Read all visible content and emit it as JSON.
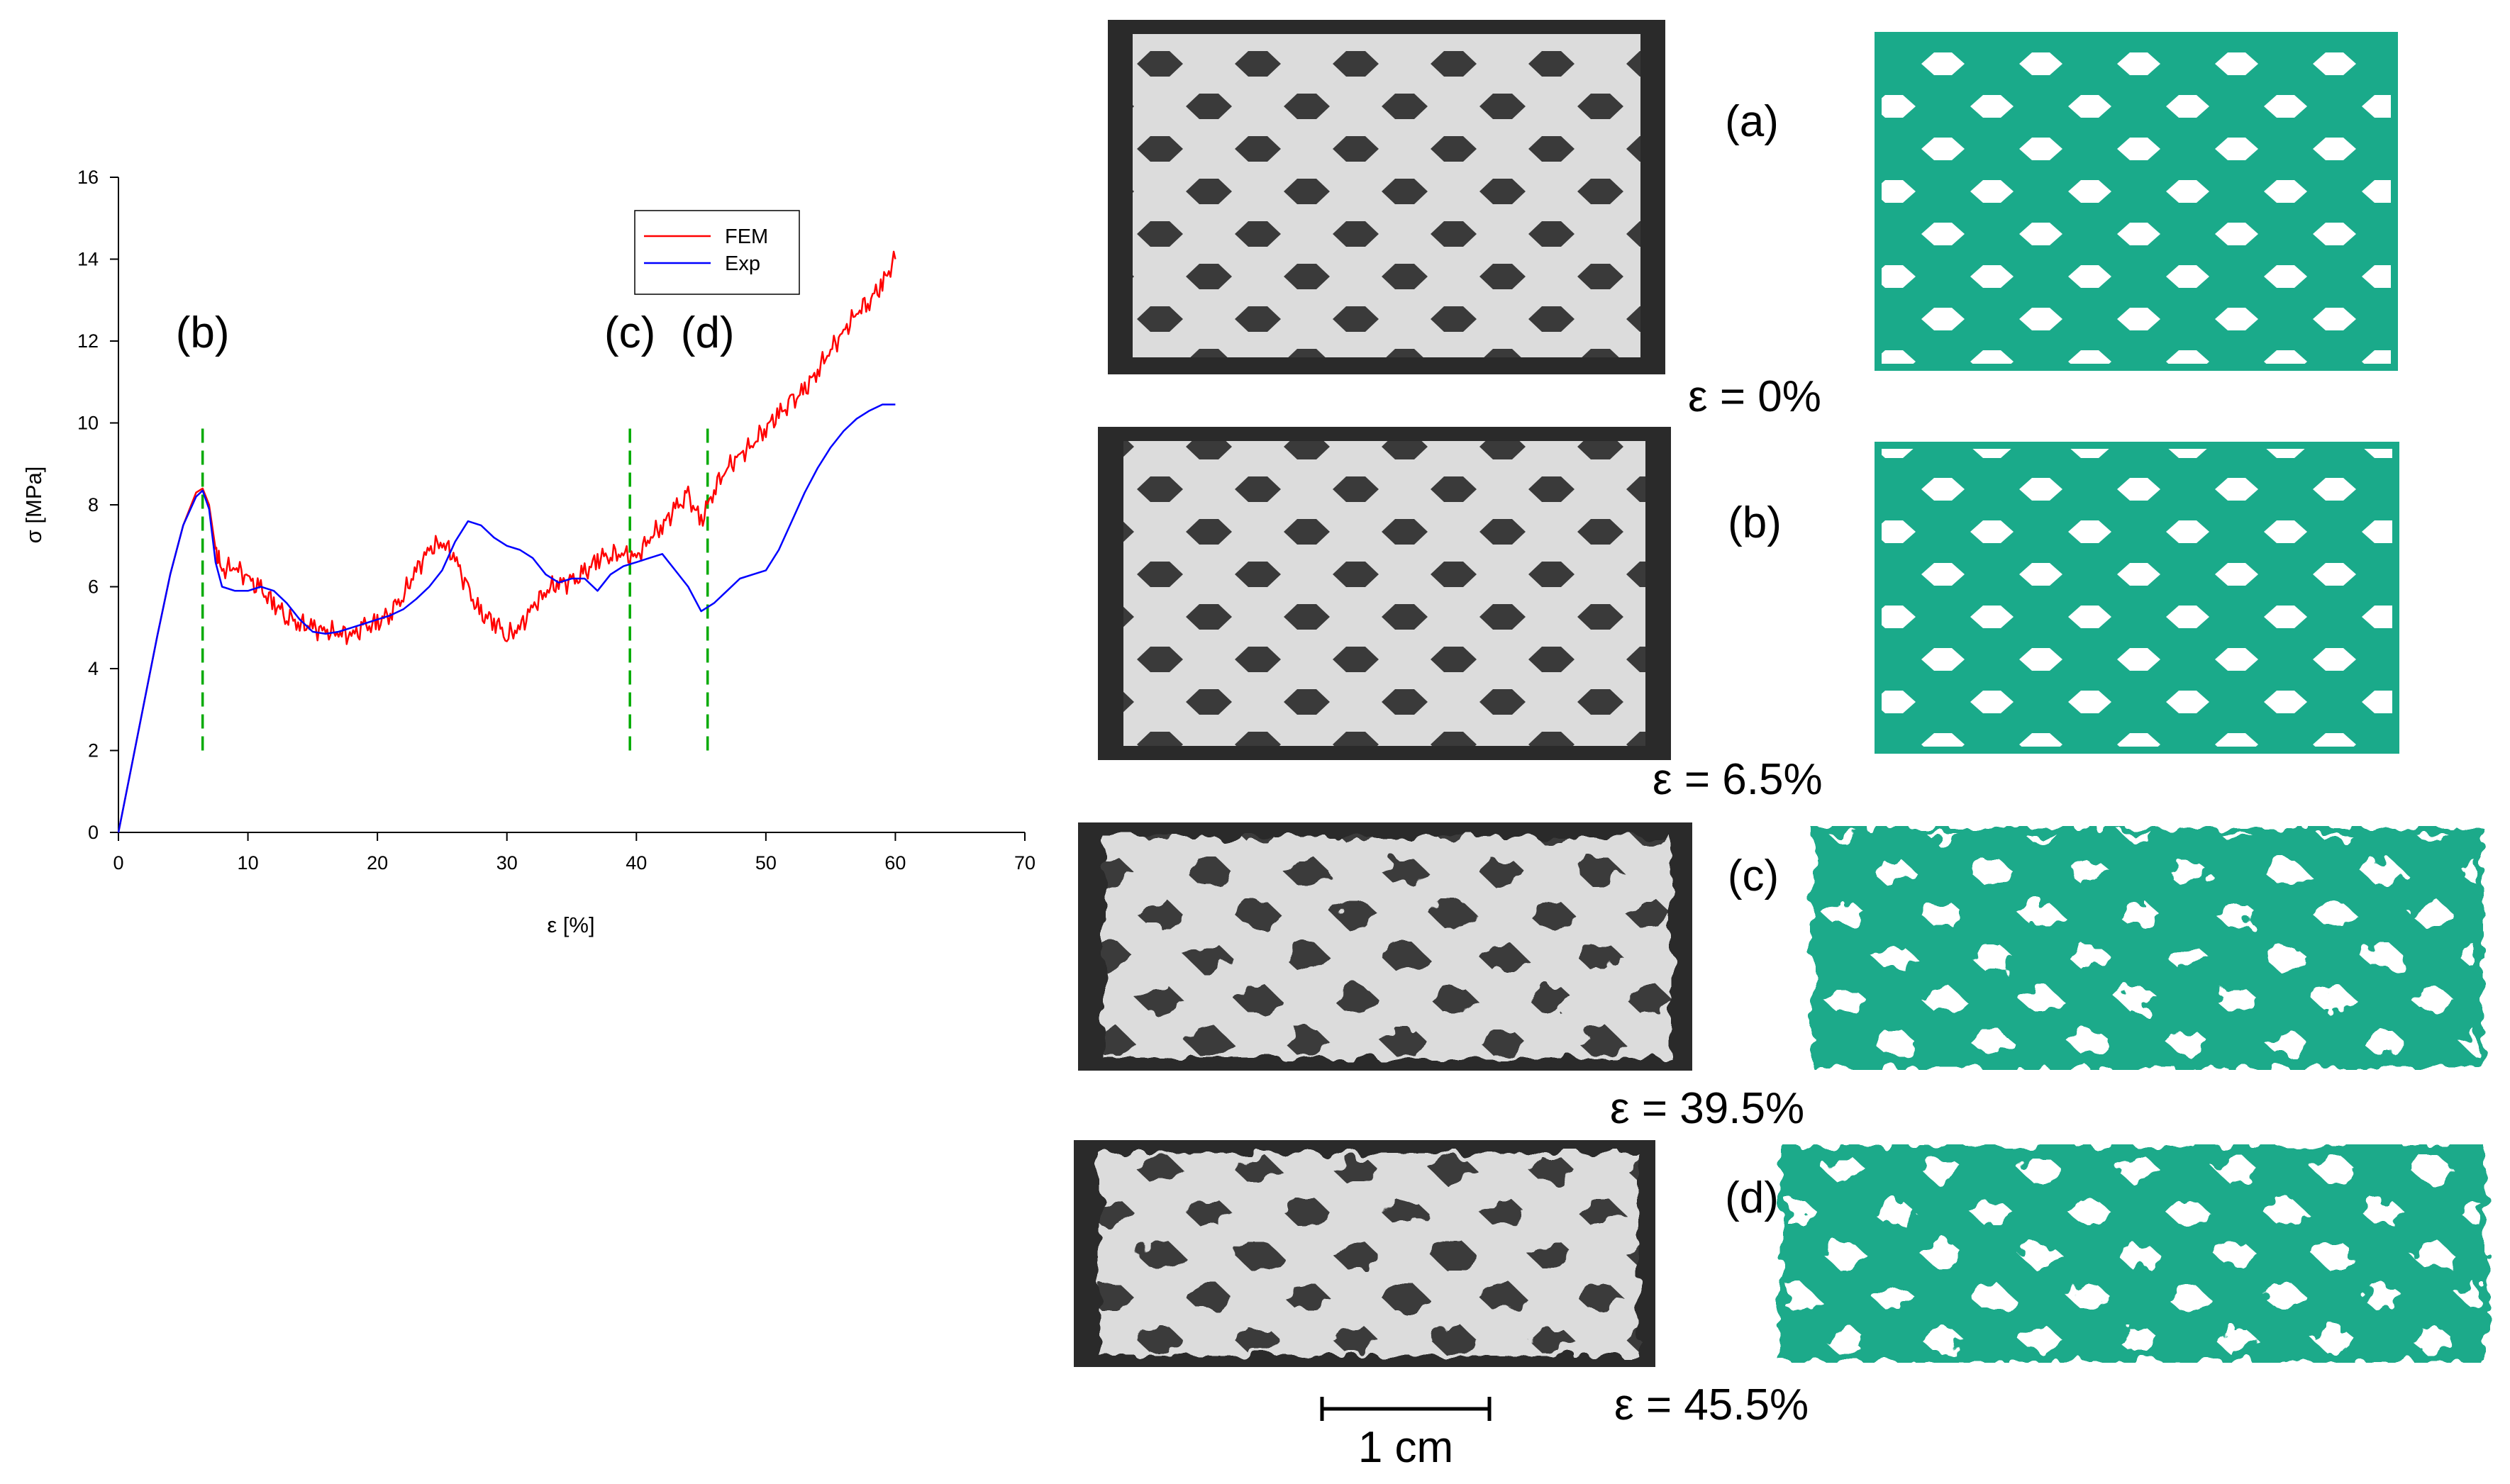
{
  "chart_data": {
    "type": "line",
    "xlabel": "ε [%]",
    "ylabel": "σ [MPa]",
    "xlim": [
      0,
      70
    ],
    "ylim": [
      0,
      16
    ],
    "x_ticks": [
      "0",
      "10",
      "20",
      "30",
      "40",
      "50",
      "60",
      "70"
    ],
    "y_ticks": [
      "0",
      "2",
      "4",
      "6",
      "8",
      "10",
      "12",
      "14",
      "16"
    ],
    "grid": false,
    "legend_position": "top-right",
    "series": [
      {
        "name": "FEM",
        "color": "#ff0000",
        "x": [
          0,
          1,
          2,
          3,
          4,
          5,
          6,
          6.5,
          7,
          7.5,
          8,
          9,
          10,
          11,
          12,
          13,
          14,
          15,
          16,
          17,
          18,
          19,
          20,
          21,
          22,
          23,
          24,
          25,
          26,
          27,
          28,
          29,
          30,
          31,
          32,
          33,
          34,
          35,
          36,
          37,
          38,
          39,
          40,
          41,
          42,
          43,
          44,
          45,
          46,
          47,
          48,
          49,
          50,
          51,
          52,
          53,
          54,
          55,
          56,
          57,
          58,
          59,
          60
        ],
        "y": [
          0,
          1.6,
          3.2,
          4.8,
          6.3,
          7.5,
          8.3,
          8.4,
          8.0,
          6.9,
          6.4,
          6.5,
          6.2,
          5.9,
          5.6,
          5.3,
          5.1,
          5.0,
          4.9,
          4.9,
          4.8,
          5.0,
          5.1,
          5.4,
          5.8,
          6.4,
          6.9,
          7.1,
          6.7,
          5.9,
          5.3,
          5.2,
          4.8,
          5.0,
          5.5,
          5.9,
          6.1,
          6.1,
          6.3,
          6.7,
          6.8,
          6.8,
          6.7,
          7.2,
          7.5,
          7.9,
          8.2,
          7.6,
          8.4,
          8.9,
          9.2,
          9.5,
          9.9,
          10.2,
          10.5,
          10.8,
          11.3,
          11.8,
          12.2,
          12.7,
          13.0,
          13.4,
          14.0
        ]
      },
      {
        "name": "Exp",
        "color": "#0000ff",
        "x": [
          0,
          1,
          2,
          3,
          4,
          5,
          6,
          6.5,
          7,
          7.5,
          8,
          9,
          10,
          11,
          12,
          13,
          14,
          15,
          16,
          17,
          18,
          19,
          20,
          21,
          22,
          23,
          24,
          25,
          26,
          27,
          28,
          29,
          30,
          31,
          32,
          33,
          34,
          35,
          36,
          37,
          38,
          39,
          40,
          41,
          42,
          43,
          44,
          45,
          46,
          47,
          48,
          49,
          50,
          51,
          52,
          53,
          54,
          55,
          56,
          57,
          58,
          59,
          60
        ],
        "y": [
          0,
          1.6,
          3.2,
          4.8,
          6.3,
          7.5,
          8.2,
          8.35,
          7.9,
          6.6,
          6.0,
          5.9,
          5.9,
          6.0,
          5.9,
          5.6,
          5.2,
          4.9,
          4.85,
          4.9,
          5.0,
          5.1,
          5.2,
          5.3,
          5.45,
          5.7,
          6.0,
          6.4,
          7.1,
          7.6,
          7.5,
          7.2,
          7.0,
          6.9,
          6.7,
          6.3,
          6.1,
          6.2,
          6.2,
          5.9,
          6.3,
          6.5,
          6.6,
          6.7,
          6.8,
          6.4,
          6.0,
          5.4,
          5.6,
          5.9,
          6.2,
          6.3,
          6.4,
          6.9,
          7.6,
          8.3,
          8.9,
          9.4,
          9.8,
          10.1,
          10.3,
          10.45,
          10.45
        ]
      }
    ],
    "annotations": [
      {
        "text": "(b)",
        "x": 6.5
      },
      {
        "text": "(c)",
        "x": 39.5
      },
      {
        "text": "(d)",
        "x": 45.5
      }
    ],
    "marker_lines": {
      "color": "#00aa00",
      "x": [
        6.5,
        39.5,
        45.5
      ],
      "y_range": [
        2,
        10
      ]
    }
  },
  "panels": [
    {
      "letter": "(a)",
      "strain": "ε = 0%"
    },
    {
      "letter": "(b)",
      "strain": "ε = 6.5%"
    },
    {
      "letter": "(c)",
      "strain": "ε = 39.5%"
    },
    {
      "letter": "(d)",
      "strain": "ε = 45.5%"
    }
  ],
  "scale_bar": {
    "label": "1 cm"
  },
  "colors": {
    "fem_model": "#1aaa8a",
    "photo_background": "#2a2a2a",
    "photo_lattice": "#dcdcdc"
  }
}
